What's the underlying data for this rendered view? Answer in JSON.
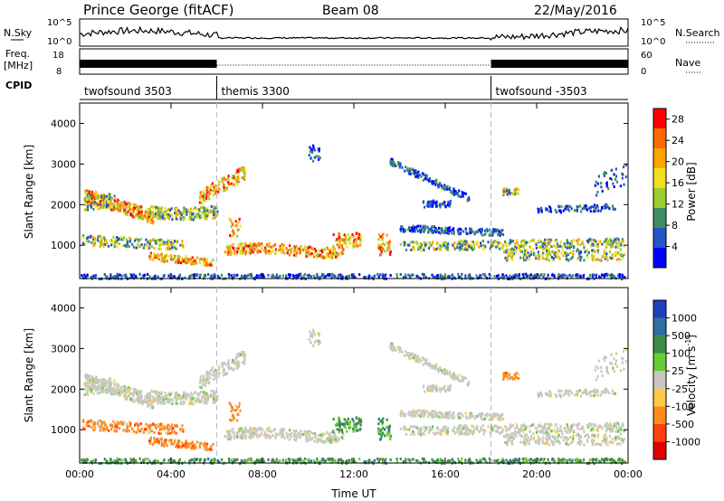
{
  "header": {
    "station": "Prince George (fitACF)",
    "beam": "Beam 08",
    "date": "22/May/2016"
  },
  "strips": {
    "nsky": {
      "label": "N.Sky",
      "tick_top": "10^5",
      "tick_bottom": "10^0",
      "right_label": "N.Search",
      "right_tick_top": "10^5",
      "right_tick_bottom": "10^0"
    },
    "freq": {
      "label_line1": "Freq.",
      "label_line2": "[MHz]",
      "tick_top": "18",
      "tick_bottom": "8",
      "right_label": "Nave",
      "right_tick_top": "60",
      "right_tick_bottom": "0"
    },
    "cpid": {
      "label": "CPID",
      "segments": [
        {
          "name": "twofsound 3503",
          "start_hour": 0,
          "end_hour": 6
        },
        {
          "name": "themis 3300",
          "start_hour": 6,
          "end_hour": 18
        },
        {
          "name": "twofsound -3503",
          "start_hour": 18,
          "end_hour": 24
        }
      ]
    }
  },
  "chart_data": [
    {
      "type": "heatmap",
      "name": "power",
      "xlabel": "",
      "ylabel": "Slant Range [km]",
      "xlim": [
        0,
        24
      ],
      "ylim": [
        180,
        4500
      ],
      "yticks": [
        "1000",
        "2000",
        "3000",
        "4000"
      ],
      "ytick_values": [
        1000,
        2000,
        3000,
        4000
      ],
      "colorbar_label": "Power [dB]",
      "colorbar_ticks": [
        "4",
        "8",
        "12",
        "16",
        "20",
        "24",
        "28"
      ],
      "colorbar_range": [
        0,
        30
      ],
      "colorbar_colors": [
        "#0000ff",
        "#2255c8",
        "#3f8e60",
        "#9acd32",
        "#f0e020",
        "#ffa500",
        "#ff6a00",
        "#ff0000"
      ]
    },
    {
      "type": "heatmap",
      "name": "velocity",
      "xlabel": "Time UT",
      "ylabel": "Slant Range [km]",
      "xlim": [
        0,
        24
      ],
      "ylim": [
        180,
        4500
      ],
      "xticks": [
        "00:00",
        "04:00",
        "08:00",
        "12:00",
        "16:00",
        "20:00",
        "00:00"
      ],
      "xtick_hours": [
        0,
        4,
        8,
        12,
        16,
        20,
        24
      ],
      "yticks": [
        "1000",
        "2000",
        "3000",
        "4000"
      ],
      "ytick_values": [
        1000,
        2000,
        3000,
        4000
      ],
      "colorbar_label": "Velocity [m s^-1]",
      "colorbar_ticks": [
        "1000",
        "500",
        "100",
        "25",
        "-25",
        "-100",
        "-500",
        "-1000"
      ],
      "colorbar_colors": [
        "#1f3fbf",
        "#2f6fa0",
        "#3a8a4a",
        "#66cc33",
        "#c8c8c0",
        "#ffcc44",
        "#ff8c1a",
        "#ff4010",
        "#e00000"
      ]
    }
  ]
}
